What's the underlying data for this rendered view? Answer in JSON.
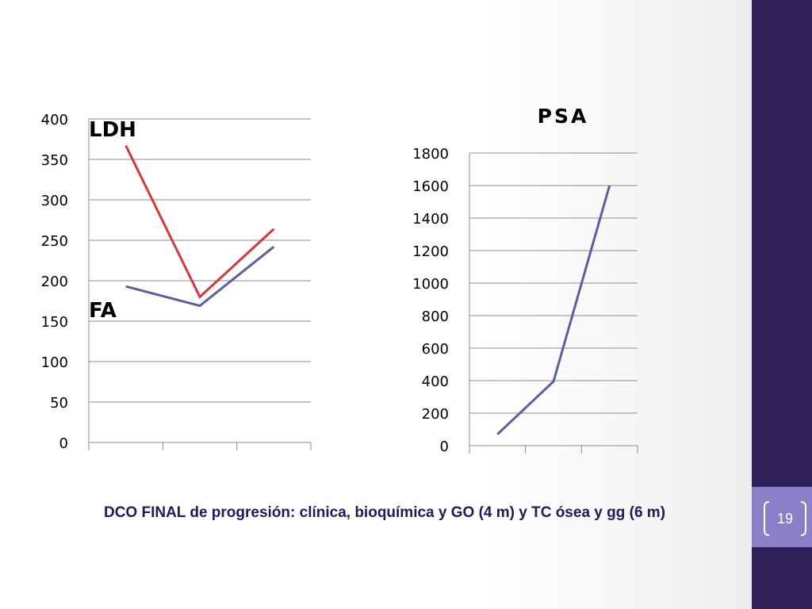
{
  "chart_data": [
    {
      "type": "line",
      "title": "",
      "categories": [
        "",
        "",
        ""
      ],
      "ylim": [
        0,
        400
      ],
      "yticks": [
        "0",
        "50",
        "100",
        "150",
        "200",
        "250",
        "300",
        "350",
        "400"
      ],
      "grid": true,
      "series": [
        {
          "name": "LDH",
          "color": "#d03a3a",
          "values": [
            367,
            180,
            264
          ]
        },
        {
          "name": "FA",
          "color": "#5b5f9e",
          "values": [
            193,
            169,
            242
          ]
        }
      ]
    },
    {
      "type": "line",
      "title": "PSA",
      "categories": [
        "",
        "",
        ""
      ],
      "ylim": [
        0,
        1800
      ],
      "yticks": [
        "0",
        "200",
        "400",
        "600",
        "800",
        "1000",
        "1200",
        "1400",
        "1600",
        "1800"
      ],
      "grid": true,
      "series": [
        {
          "color": "#5b5f9e",
          "values": [
            70,
            395,
            1600
          ]
        }
      ]
    }
  ],
  "caption": "DCO FINAL de progresión: clínica, bioquímica y GO (4 m) y TC ósea y gg (6 m)",
  "page_number": "19",
  "colors": {
    "sidebar": "#2e2157",
    "badge": "#8b7fc9",
    "caption": "#1f1a5a"
  }
}
